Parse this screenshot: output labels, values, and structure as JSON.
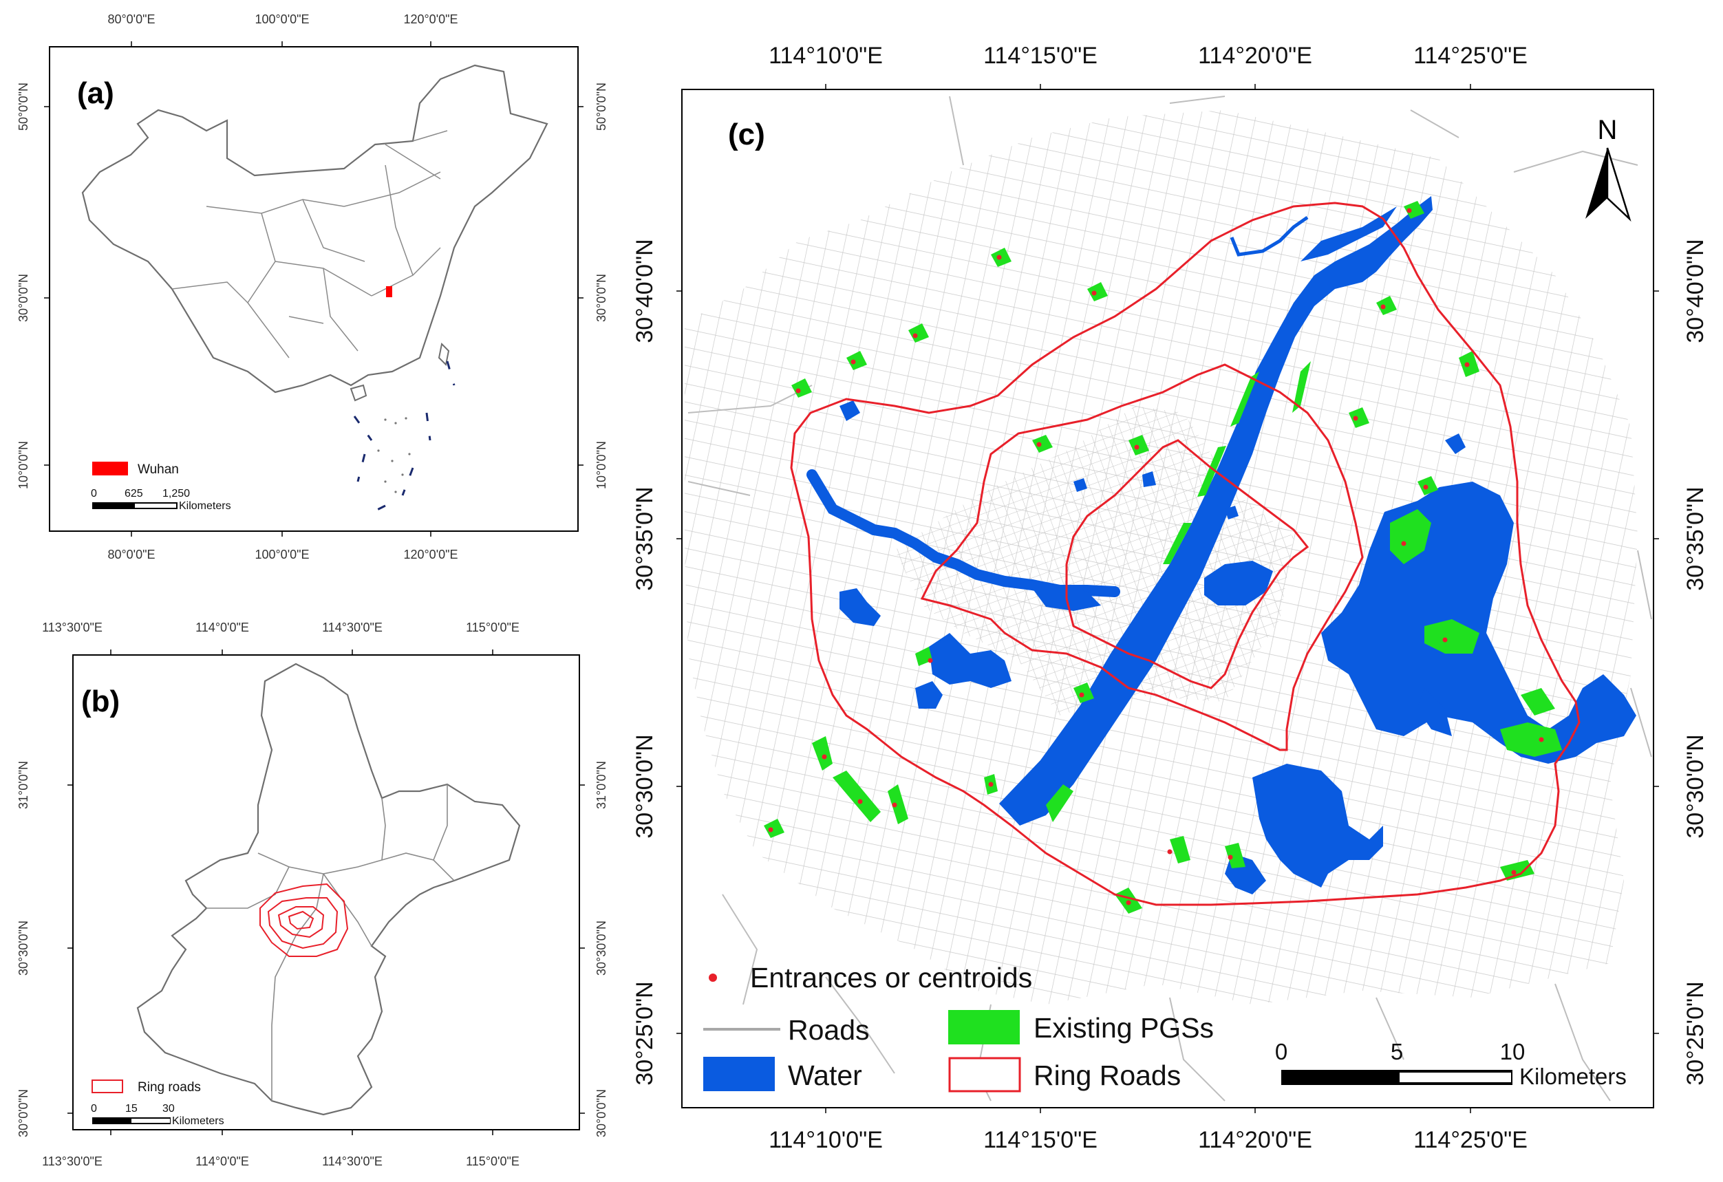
{
  "panel_a": {
    "label": "(a)",
    "ticks_top": [
      "80°0'0\"E",
      "100°0'0\"E",
      "120°0'0\"E"
    ],
    "ticks_bottom": [
      "80°0'0\"E",
      "100°0'0\"E",
      "120°0'0\"E"
    ],
    "ticks_left": [
      "50°0'0\"N",
      "30°0'0\"N",
      "10°0'0\"N"
    ],
    "ticks_right": [
      "50°0'0\"N",
      "30°0'0\"N",
      "10°0'0\"N"
    ],
    "legend": {
      "label": "Wuhan",
      "color": "#ff0000"
    },
    "scalebar": {
      "ticks": [
        "0",
        "625",
        "1,250"
      ],
      "unit": "Kilometers"
    }
  },
  "panel_b": {
    "label": "(b)",
    "ticks_top": [
      "113°30'0\"E",
      "114°0'0\"E",
      "114°30'0\"E",
      "115°0'0\"E"
    ],
    "ticks_bottom": [
      "113°30'0\"E",
      "114°0'0\"E",
      "114°30'0\"E",
      "115°0'0\"E"
    ],
    "ticks_left": [
      "31°0'0\"N",
      "30°30'0\"N",
      "30°0'0\"N"
    ],
    "ticks_right": [
      "31°0'0\"N",
      "30°30'0\"N",
      "30°0'0\"N"
    ],
    "legend": {
      "label": "Ring roads",
      "color": "#e8202a"
    },
    "scalebar": {
      "ticks": [
        "0",
        "15",
        "30"
      ],
      "unit": "Kilometers"
    }
  },
  "panel_c": {
    "label": "(c)",
    "ticks_top": [
      "114°10'0\"E",
      "114°15'0\"E",
      "114°20'0\"E",
      "114°25'0\"E"
    ],
    "ticks_bottom": [
      "114°10'0\"E",
      "114°15'0\"E",
      "114°20'0\"E",
      "114°25'0\"E"
    ],
    "ticks_left": [
      "30°40'0\"N",
      "30°35'0\"N",
      "30°30'0\"N",
      "30°25'0\"N"
    ],
    "ticks_right": [
      "30°40'0\"N",
      "30°35'0\"N",
      "30°30'0\"N",
      "30°25'0\"N"
    ],
    "north_arrow": "N",
    "legend": [
      {
        "label": "Entrances or centroids",
        "symbol": "point",
        "color": "#e8202a"
      },
      {
        "label": "Roads",
        "symbol": "line",
        "color": "#a8a8a8"
      },
      {
        "label": "Existing PGSs",
        "symbol": "fill",
        "color": "#1fe01f"
      },
      {
        "label": "Water",
        "symbol": "fill",
        "color": "#0a5be0"
      },
      {
        "label": "Ring Roads",
        "symbol": "outline",
        "color": "#e8202a"
      }
    ],
    "scalebar": {
      "ticks": [
        "0",
        "5",
        "10"
      ],
      "unit": "Kilometers"
    }
  }
}
